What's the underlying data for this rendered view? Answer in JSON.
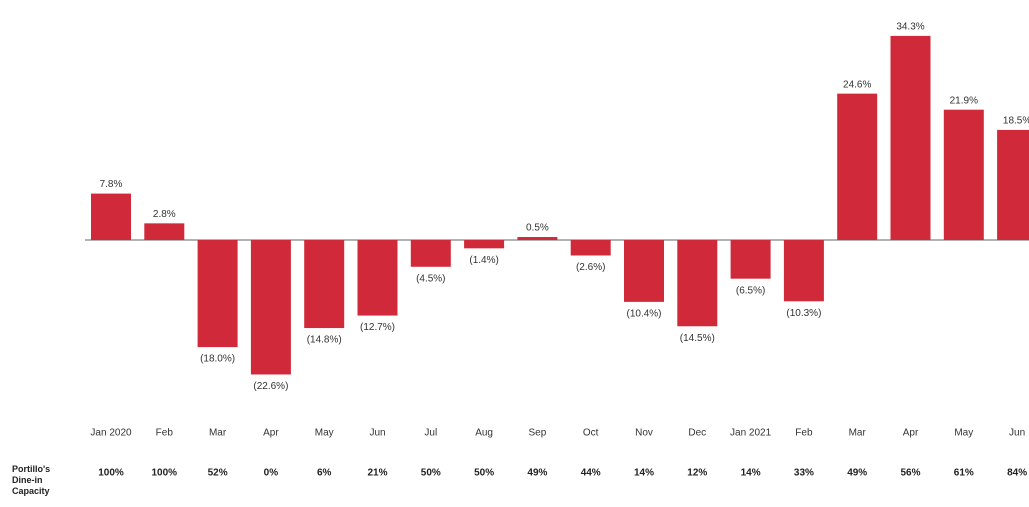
{
  "chart_data": {
    "type": "bar",
    "categories": [
      "Jan 2020",
      "Feb",
      "Mar",
      "Apr",
      "May",
      "Jun",
      "Jul",
      "Aug",
      "Sep",
      "Oct",
      "Nov",
      "Dec",
      "Jan 2021",
      "Feb",
      "Mar",
      "Apr",
      "May",
      "Jun"
    ],
    "values": [
      7.8,
      2.8,
      -18.0,
      -22.6,
      -14.8,
      -12.7,
      -4.5,
      -1.4,
      0.5,
      -2.6,
      -10.4,
      -14.5,
      -6.5,
      -10.3,
      24.6,
      34.3,
      21.9,
      18.5
    ],
    "value_labels": [
      "7.8%",
      "2.8%",
      "(18.0%)",
      "(22.6%)",
      "(14.8%)",
      "(12.7%)",
      "(4.5%)",
      "(1.4%)",
      "0.5%",
      "(2.6%)",
      "(10.4%)",
      "(14.5%)",
      "(6.5%)",
      "(10.3%)",
      "24.6%",
      "34.3%",
      "21.9%",
      "18.5%"
    ],
    "color": "#d0293a",
    "capacity_label": "Portillo's Dine-in Capacity",
    "capacity": [
      "100%",
      "100%",
      "52%",
      "0%",
      "6%",
      "21%",
      "50%",
      "50%",
      "49%",
      "44%",
      "14%",
      "12%",
      "14%",
      "33%",
      "49%",
      "56%",
      "61%",
      "84%"
    ]
  }
}
